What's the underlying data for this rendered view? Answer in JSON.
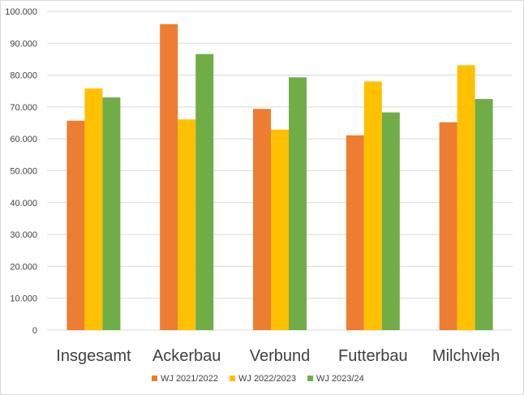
{
  "chart_data": {
    "type": "bar",
    "title": "",
    "xlabel": "",
    "ylabel": "",
    "categories": [
      "Insgesamt",
      "Ackerbau",
      "Verbund",
      "Futterbau",
      "Milchvieh"
    ],
    "series": [
      {
        "name": "WJ 2021/2022",
        "color": "#ED7D31",
        "values": [
          65700,
          96000,
          69400,
          61100,
          65200
        ]
      },
      {
        "name": "WJ 2022/2023",
        "color": "#FFC000",
        "values": [
          75800,
          66100,
          62900,
          78000,
          83100
        ]
      },
      {
        "name": "WJ 2023/24",
        "color": "#70AD47",
        "values": [
          73000,
          86600,
          79300,
          68300,
          72500
        ]
      }
    ],
    "ylim": [
      0,
      100000
    ],
    "yticks": [
      0,
      10000,
      20000,
      30000,
      40000,
      50000,
      60000,
      70000,
      80000,
      90000,
      100000
    ],
    "ytick_labels": [
      "0",
      "10.000",
      "20.000",
      "30.000",
      "40.000",
      "50.000",
      "60.000",
      "70.000",
      "80.000",
      "90.000",
      "100.000"
    ],
    "grid": true,
    "legend_position": "bottom"
  }
}
